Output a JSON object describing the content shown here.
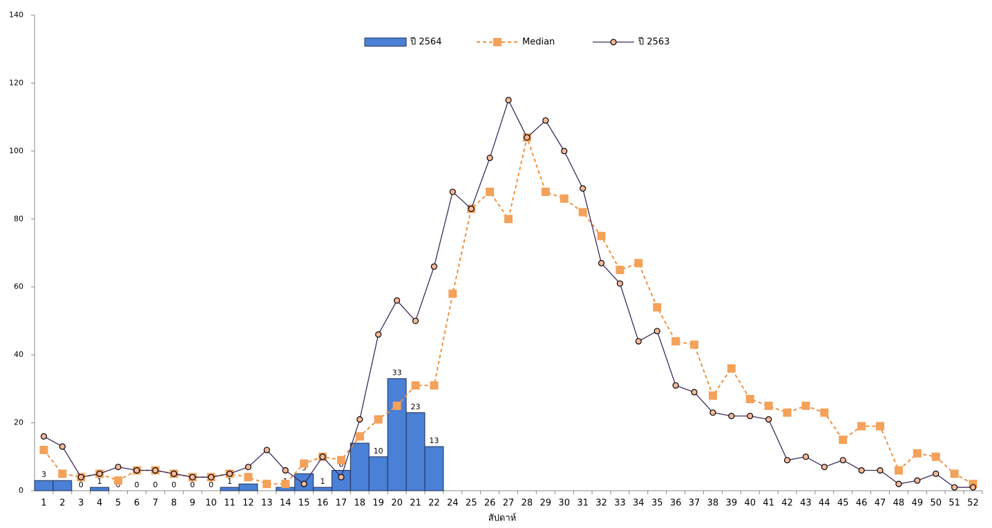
{
  "chart_data": {
    "type": "bar-line",
    "x_label": "สัปดาห์",
    "categories": [
      "1",
      "2",
      "3",
      "4",
      "5",
      "6",
      "7",
      "8",
      "9",
      "10",
      "11",
      "12",
      "13",
      "14",
      "15",
      "16",
      "17",
      "18",
      "19",
      "20",
      "21",
      "22",
      "24",
      "25",
      "26",
      "27",
      "28",
      "29",
      "30",
      "31",
      "32",
      "33",
      "34",
      "35",
      "36",
      "37",
      "38",
      "39",
      "40",
      "41",
      "42",
      "43",
      "44",
      "45",
      "46",
      "47",
      "48",
      "49",
      "50",
      "51",
      "52"
    ],
    "series": [
      {
        "name": "ปี 2564",
        "kind": "bar",
        "color": "#4a80d6",
        "edge": "#1f2f4f",
        "values": [
          3,
          3,
          0,
          1,
          0,
          0,
          0,
          0,
          0,
          0,
          1,
          2,
          0,
          1,
          5,
          1,
          6,
          14,
          10,
          33,
          23,
          13,
          null,
          null,
          null,
          null,
          null,
          null,
          null,
          null,
          null,
          null,
          null,
          null,
          null,
          null,
          null,
          null,
          null,
          null,
          null,
          null,
          null,
          null,
          null,
          null,
          null,
          null,
          null,
          null,
          null
        ]
      },
      {
        "name": "Median",
        "kind": "line",
        "color": "#f0913f",
        "marker": "square",
        "marker_color": "#f4a15a",
        "dashed": true,
        "values": [
          12,
          5,
          4,
          5,
          3,
          6,
          6,
          5,
          4,
          4,
          5,
          4,
          2,
          2,
          8,
          10,
          9,
          16,
          21,
          25,
          31,
          31,
          58,
          83,
          88,
          80,
          104,
          88,
          86,
          82,
          75,
          65,
          67,
          54,
          44,
          43,
          28,
          36,
          27,
          25,
          23,
          25,
          23,
          15,
          19,
          19,
          6,
          11,
          10,
          5,
          2
        ]
      },
      {
        "name": "ปี 2563",
        "kind": "line",
        "color": "#3b2a5a",
        "marker": "circle",
        "marker_color": "#f6b89a",
        "dashed": false,
        "values": [
          16,
          13,
          4,
          5,
          7,
          6,
          6,
          5,
          4,
          4,
          5,
          7,
          12,
          6,
          2,
          10,
          4,
          21,
          46,
          56,
          50,
          66,
          88,
          83,
          98,
          115,
          104,
          109,
          100,
          89,
          67,
          61,
          44,
          47,
          31,
          29,
          23,
          22,
          22,
          21,
          9,
          10,
          7,
          9,
          6,
          6,
          2,
          3,
          5,
          1,
          1
        ]
      }
    ],
    "ylim": [
      0,
      140
    ],
    "yticks": [
      0,
      20,
      40,
      60,
      80,
      100,
      120,
      140
    ],
    "grid": false
  }
}
